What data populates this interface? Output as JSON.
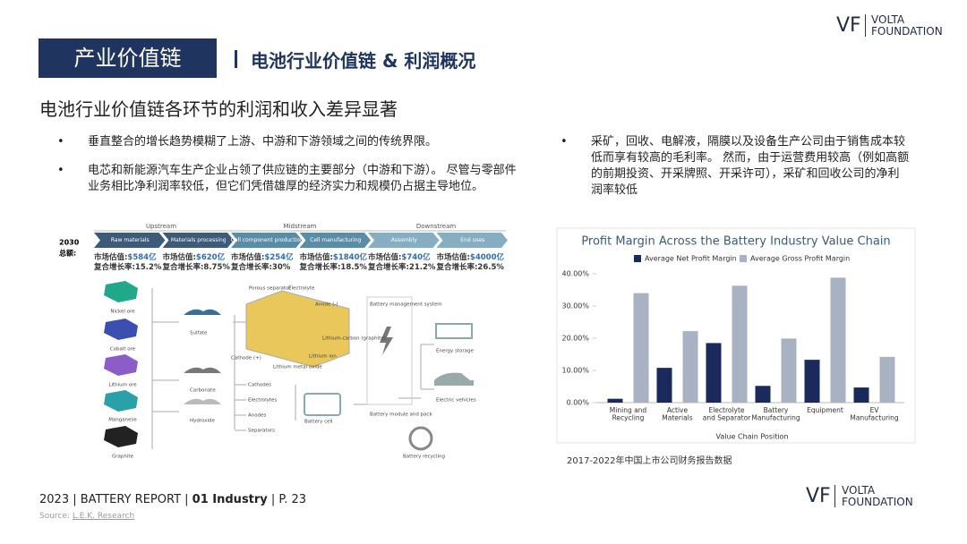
{
  "header": {
    "section": "产业价值链",
    "title": "电池行业价值链 & 利润概况",
    "logo": {
      "mark": "VF",
      "line1": "VOLTA",
      "line2": "FOUNDATION"
    }
  },
  "subtitle": "电池行业价值链各环节的利润和收入差异显著",
  "bullets_left": [
    "垂直整合的增长趋势模糊了上游、中游和下游领域之间的传统界限。",
    "电芯和新能源汽车生产企业占领了供应链的主要部分（中游和下游）。 尽管与零部件业务相比净利润率较低，但它们凭借雄厚的经济实力和规模仍占据主导地位。"
  ],
  "bullets_right": [
    "采矿，回收、电解液，隔膜以及设备生产公司由于销售成本较低而享有较高的毛利率。 然而，由于运营费用较高（例如高额的前期投资、开采牌照、开采许可），采矿和回收公司的净利润率较低"
  ],
  "value_chain": {
    "stages": [
      "Upstream",
      "Midstream",
      "Downstream"
    ],
    "steps": [
      "Raw materials",
      "Materials processing",
      "Cell component production",
      "Cell manufacturing",
      "Assembly",
      "End uses"
    ],
    "total_year": "2030",
    "total_label": "总额:",
    "market_label": "市场估值:",
    "cagr_label": "复合增长率:",
    "markets": [
      "$584亿",
      "$620亿",
      "$254亿",
      "$1840亿",
      "$740亿",
      "$4000亿"
    ],
    "cagrs": [
      "15.2%",
      "8.75%",
      "30%",
      "18.5%",
      "21.2%",
      "26.5%"
    ],
    "items": [
      "Nickel ore",
      "Cobalt ore",
      "Lithium ore",
      "Manganese",
      "Graphite",
      "Sulfate",
      "Carbonate",
      "Hydroxide",
      "Cathodes",
      "Electrolytes",
      "Anodes",
      "Separators",
      "Battery cell",
      "Porous separator",
      "Electrolyte",
      "Anode (-)",
      "Cathode (+)",
      "Lithium-carbon (graphite)",
      "Lithium ion",
      "Lithium metal oxide",
      "Battery management system",
      "Battery module and pack",
      "Energy storage",
      "Electric vehicles",
      "Battery recycling"
    ]
  },
  "chart_data": {
    "type": "bar",
    "title": "Profit Margin Across the Battery Industry Value Chain",
    "categories": [
      "Mining and\nRecycling",
      "Active\nMaterials",
      "Electrolyte\nand Separator",
      "Battery\nManufacturing",
      "Equipment",
      "EV\nManufacturing"
    ],
    "series": [
      {
        "name": "Average Net Profit Margin",
        "color": "#1b2a5c",
        "values": [
          1.2,
          10.8,
          18.5,
          5.2,
          13.3,
          4.7
        ]
      },
      {
        "name": "Average Gross Profit Margin",
        "color": "#a8b2c3",
        "values": [
          34,
          22.2,
          36.3,
          19.9,
          38.8,
          14.2
        ]
      }
    ],
    "xlabel": "Value Chain Position",
    "ylim": [
      0,
      40
    ],
    "yticks": [
      {
        "value": 0,
        "label": "0.00%"
      },
      {
        "value": 10,
        "label": "10.00%"
      },
      {
        "value": 20,
        "label": "20.00%"
      },
      {
        "value": 30,
        "label": "30.00%"
      },
      {
        "value": 40,
        "label": "40.00%"
      }
    ],
    "legend": "top"
  },
  "chart_source": "2017-2022年中国上市公司财务报告数据",
  "footer": {
    "lead": "2023 | BATTERY REPORT | ",
    "section": "01 Industry",
    "page": " | P. 23",
    "source_label": "Source:",
    "source": "L.E.K. Research"
  }
}
